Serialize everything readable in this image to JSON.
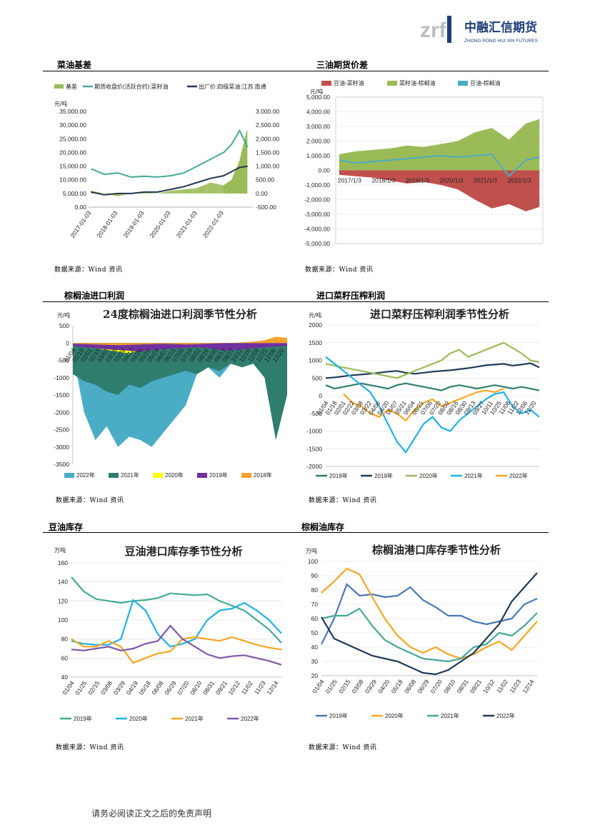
{
  "logo": {
    "mark": "zrf",
    "name_cn": "中融汇信期货",
    "name_en": "ZHONG RONG HUI XIN FUTURES"
  },
  "sections": [
    {
      "title": "菜油基差",
      "source": "数据来源：Wind 资讯"
    },
    {
      "title": "三油期货价差",
      "source": "数据来源：Wind 资讯"
    },
    {
      "title": "棕榈油进口利润",
      "source": "数据来源：Wind 资讯"
    },
    {
      "title": "进口菜籽压榨利润",
      "source": "数据来源：Wind 资讯"
    },
    {
      "title": "豆油库存",
      "source": "数据来源：Wind 资讯"
    },
    {
      "title": "棕榈油库存",
      "source": "数据来源：Wind 资讯"
    }
  ],
  "footer": "请务必阅读正文之后的免责声明",
  "chart_data": [
    {
      "type": "line",
      "legend": [
        "基差",
        "期货收盘价(活跃合约):菜籽油",
        "出厂价:四级菜油:江苏:南通"
      ],
      "unit": "元/吨",
      "ylim_left": [
        0,
        35000
      ],
      "ylim_right": [
        -500,
        3000
      ],
      "x_ticks": [
        "2017-01-03",
        "2018-01-03",
        "2019-01-03",
        "2020-01-03",
        "2021-01-03",
        "2022-01-03"
      ],
      "y_left_ticks": [
        "35,000.00",
        "30,000.00",
        "25,000.00",
        "20,000.00",
        "15,000.00",
        "10,000.00",
        "5,000.00",
        "0.00"
      ],
      "y_right_ticks": [
        "3,000.00",
        "2,500.00",
        "2,000.00",
        "1,500.00",
        "1,000.00",
        "500.00",
        "0.00",
        "-500.00"
      ],
      "x": [
        2017.0,
        2017.5,
        2018.0,
        2018.5,
        2019.0,
        2019.5,
        2020.0,
        2020.5,
        2021.0,
        2021.5,
        2022.0,
        2022.3,
        2022.6,
        2022.9
      ],
      "series": [
        {
          "name": "期货收盘价(活跃合约):菜籽油",
          "axis": "left",
          "values": [
            14000,
            12000,
            12500,
            11000,
            11300,
            11000,
            11500,
            12500,
            15000,
            17500,
            20000,
            23000,
            28000,
            22000
          ]
        },
        {
          "name": "出厂价:四级菜油:江苏:南通",
          "axis": "right",
          "values": [
            50,
            -50,
            0,
            0,
            50,
            50,
            150,
            250,
            400,
            550,
            650,
            800,
            950,
            1000
          ]
        },
        {
          "name": "基差",
          "axis": "right",
          "values": [
            100,
            0,
            -100,
            0,
            50,
            0,
            100,
            150,
            200,
            400,
            300,
            500,
            1200,
            2400
          ]
        }
      ]
    },
    {
      "type": "area",
      "legend": [
        "豆油-菜籽油",
        "菜籽油-棕榈油",
        "豆油-棕榈油"
      ],
      "unit": "元/吨",
      "ylim": [
        -5000,
        5000
      ],
      "x_ticks": [
        "2017/1/3",
        "2018/1/3",
        "2019/1/3",
        "2020/1/3",
        "2021/1/3",
        "2022/1/3"
      ],
      "y_ticks": [
        "5,000.00",
        "4,000.00",
        "3,000.00",
        "2,000.00",
        "1,000.00",
        "0.00",
        "-1,000.00",
        "-2,000.00",
        "-3,000.00",
        "-4,000.00",
        "-5,000.00"
      ],
      "x": [
        2017.0,
        2017.5,
        2018.0,
        2018.5,
        2019.0,
        2019.5,
        2020.0,
        2020.5,
        2021.0,
        2021.5,
        2022.0,
        2022.5,
        2022.9
      ],
      "series": [
        {
          "name": "菜籽油-棕榈油",
          "values": [
            1100,
            1300,
            1400,
            1500,
            1700,
            1600,
            1800,
            2000,
            2600,
            2900,
            2100,
            3200,
            3500
          ]
        },
        {
          "name": "豆油-菜籽油",
          "values": [
            -300,
            -400,
            -500,
            -700,
            -900,
            -800,
            -1000,
            -1300,
            -2000,
            -2600,
            -2300,
            -2800,
            -2500
          ]
        },
        {
          "name": "豆油-棕榈油",
          "values": [
            700,
            500,
            600,
            700,
            800,
            900,
            1000,
            900,
            1000,
            1100,
            -400,
            700,
            900
          ]
        }
      ]
    },
    {
      "type": "area",
      "title": "24度棕榈油进口利润季节性分析",
      "unit": "元/吨",
      "ylim": [
        -3500,
        500
      ],
      "y_ticks": [
        "500",
        "0",
        "-500",
        "-1000",
        "-1500",
        "-2000",
        "-2500",
        "-3000",
        "-3500"
      ],
      "x_ticks": [
        "01/04",
        "01/18",
        "02/01",
        "02/15",
        "03/01",
        "03/15",
        "03/29",
        "04/12",
        "04/26",
        "05/10",
        "05/24",
        "06/07",
        "06/21",
        "07/05",
        "07/19",
        "08/02",
        "08/16",
        "08/30",
        "09/13",
        "09/27",
        "10/11",
        "10/25",
        "11/08",
        "11/22",
        "12/06",
        "12/20"
      ],
      "legend": [
        "2022年",
        "2021年",
        "2020年",
        "2019年",
        "2018年"
      ],
      "series": [
        {
          "name": "2022年",
          "values": [
            -300,
            -2000,
            -2800,
            -2400,
            -3000,
            -2700,
            -2800,
            -3000,
            -2600,
            -2200,
            -1800,
            -900,
            -700,
            -1000,
            -600,
            -300,
            -200,
            -150,
            -100,
            -120
          ]
        },
        {
          "name": "2021年",
          "values": [
            -900,
            -1100,
            -1200,
            -1400,
            -1500,
            -1200,
            -1300,
            -1100,
            -1000,
            -900,
            -800,
            -900,
            -700,
            -800,
            -600,
            -700,
            -600,
            -1000,
            -2800,
            -1500
          ]
        },
        {
          "name": "2020年",
          "values": [
            -50,
            -100,
            -150,
            -200,
            -250,
            -300,
            -200,
            -150,
            -100,
            -80,
            -60,
            -100,
            -150,
            -100,
            -80,
            -60,
            -50,
            -60,
            -80,
            -60
          ]
        },
        {
          "name": "2019年",
          "values": [
            -80,
            -120,
            -150,
            -180,
            -200,
            -220,
            -250,
            -200,
            -180,
            -160,
            -140,
            -120,
            -150,
            -200,
            -220,
            -180,
            -150,
            -120,
            -100,
            -80
          ]
        },
        {
          "name": "2018年",
          "values": [
            -20,
            -30,
            -40,
            -50,
            -60,
            -50,
            -40,
            -30,
            -20,
            -30,
            -40,
            -30,
            -20,
            -10,
            0,
            20,
            40,
            80,
            180,
            150
          ]
        }
      ]
    },
    {
      "type": "line",
      "title": "进口菜籽压榨利润季节性分析",
      "unit": "元/吨",
      "ylim": [
        -2000,
        2000
      ],
      "y_ticks": [
        "2000",
        "1500",
        "1000",
        "500",
        "0",
        "-500",
        "-1000",
        "-1500",
        "-2000"
      ],
      "x_ticks": [
        "01/04",
        "01/18",
        "02/01",
        "02/22",
        "03/08",
        "03/22",
        "04/06",
        "04/20",
        "05/07",
        "05/21",
        "06/04",
        "06/21",
        "07/06",
        "07/20",
        "08/02",
        "08/16",
        "08/30",
        "09/13",
        "09/27",
        "10/11",
        "10/25",
        "11/08",
        "11/22",
        "12/06",
        "12/20"
      ],
      "legend": [
        "2018年",
        "2019年",
        "2020年",
        "2021年",
        "2022年"
      ],
      "series": [
        {
          "name": "2018年",
          "values": [
            300,
            200,
            250,
            300,
            350,
            300,
            250,
            200,
            300,
            350,
            300,
            250,
            200,
            150,
            250,
            300,
            250,
            200,
            250,
            300,
            250,
            200,
            250,
            200,
            150
          ]
        },
        {
          "name": "2019年",
          "values": [
            500,
            520,
            550,
            580,
            600,
            620,
            650,
            680,
            700,
            650,
            620,
            650,
            680,
            700,
            720,
            750,
            780,
            820,
            860,
            880,
            900,
            850,
            880,
            920,
            800
          ]
        },
        {
          "name": "2020年",
          "values": [
            900,
            850,
            800,
            750,
            700,
            650,
            600,
            550,
            500,
            600,
            700,
            800,
            900,
            1000,
            1200,
            1300,
            1100,
            1200,
            1300,
            1400,
            1500,
            1350,
            1200,
            1000,
            950
          ]
        },
        {
          "name": "2021年",
          "values": [
            1100,
            900,
            700,
            500,
            300,
            100,
            -300,
            -800,
            -1300,
            -1600,
            -1200,
            -800,
            -600,
            -900,
            -1000,
            -700,
            -500,
            -300,
            -100,
            50,
            100,
            -300,
            -500,
            -400,
            -600
          ]
        },
        {
          "name": "2022年",
          "values": [
            null,
            null,
            50,
            -200,
            -300,
            -500,
            -600,
            -400,
            -500,
            -700,
            -400,
            -200,
            -100,
            -300,
            -200,
            -100,
            0,
            100,
            150,
            100,
            200,
            null,
            null,
            null,
            null
          ]
        }
      ]
    },
    {
      "type": "line",
      "title": "豆油港口库存季节性分析",
      "unit": "万吨",
      "ylim": [
        40,
        160
      ],
      "y_ticks": [
        "160",
        "140",
        "120",
        "100",
        "80",
        "60",
        "40"
      ],
      "x_ticks": [
        "01/04",
        "01/25",
        "02/15",
        "03/08",
        "03/29",
        "04/19",
        "05/18",
        "06/08",
        "06/29",
        "07/20",
        "08/10",
        "08/31",
        "09/21",
        "10/12",
        "11/02",
        "11/23",
        "12/14"
      ],
      "legend": [
        "2019年",
        "2020年",
        "2021年",
        "2022年"
      ],
      "series": [
        {
          "name": "2019年",
          "values": [
            145,
            130,
            122,
            120,
            118,
            120,
            121,
            123,
            128,
            127,
            126,
            127,
            120,
            115,
            110,
            100,
            90,
            76
          ]
        },
        {
          "name": "2020年",
          "values": [
            78,
            75,
            74,
            74,
            80,
            121,
            110,
            85,
            72,
            75,
            80,
            100,
            110,
            112,
            118,
            110,
            100,
            86
          ]
        },
        {
          "name": "2021年",
          "values": [
            80,
            72,
            72,
            78,
            72,
            55,
            60,
            65,
            67,
            80,
            82,
            80,
            78,
            82,
            78,
            74,
            71,
            69
          ]
        },
        {
          "name": "2022年",
          "values": [
            69,
            68,
            70,
            72,
            68,
            70,
            75,
            78,
            94,
            80,
            72,
            64,
            60,
            62,
            63,
            60,
            57,
            53
          ]
        }
      ]
    },
    {
      "type": "line",
      "title": "棕榈油港口库存季节性分析",
      "unit": "万吨",
      "ylim": [
        20,
        100
      ],
      "y_ticks": [
        "100",
        "90",
        "80",
        "70",
        "60",
        "50",
        "40",
        "30",
        "20"
      ],
      "x_ticks": [
        "01/04",
        "01/25",
        "02/15",
        "03/08",
        "03/29",
        "04/20",
        "05/18",
        "06/08",
        "06/29",
        "07/20",
        "08/10",
        "08/31",
        "09/21",
        "10/12",
        "11/02",
        "11/23",
        "12/14"
      ],
      "legend": [
        "2019年",
        "2020年",
        "2021年",
        "2022年"
      ],
      "series": [
        {
          "name": "2019年",
          "values": [
            42,
            60,
            84,
            76,
            77,
            75,
            76,
            82,
            73,
            68,
            62,
            62,
            58,
            56,
            58,
            60,
            70,
            74
          ]
        },
        {
          "name": "2020年",
          "values": [
            78,
            86,
            95,
            91,
            75,
            60,
            48,
            40,
            36,
            40,
            35,
            32,
            35,
            40,
            44,
            38,
            48,
            58
          ]
        },
        {
          "name": "2021年",
          "values": [
            60,
            62,
            62,
            67,
            55,
            45,
            40,
            36,
            32,
            31,
            30,
            32,
            40,
            42,
            50,
            48,
            55,
            64
          ]
        },
        {
          "name": "2022年",
          "values": [
            61,
            46,
            42,
            38,
            34,
            32,
            30,
            26,
            22,
            21,
            24,
            30,
            36,
            46,
            56,
            72,
            82,
            92
          ]
        }
      ]
    }
  ]
}
